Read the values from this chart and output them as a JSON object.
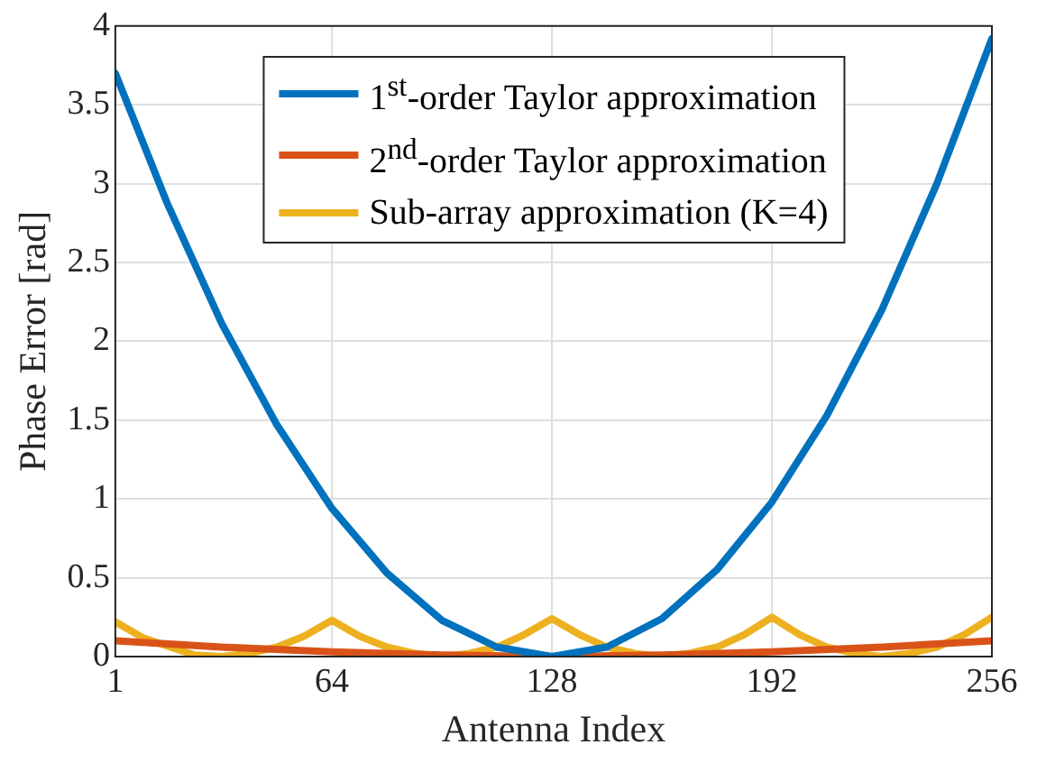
{
  "chart_data": {
    "type": "line",
    "xlabel": "Antenna Index",
    "ylabel": "Phase Error [rad]",
    "xlim": [
      1,
      256
    ],
    "xticks": [
      1,
      64,
      128,
      192,
      256
    ],
    "ylim": [
      0,
      4
    ],
    "yticks": [
      0,
      0.5,
      1,
      1.5,
      2,
      2.5,
      3,
      3.5,
      4
    ],
    "grid": true,
    "legend": "top",
    "marker": "none",
    "line_style": "solid",
    "series": [
      {
        "name": "1$^{st}$-order Taylor approximation",
        "color": "#0072bd",
        "x": [
          1,
          16,
          32,
          48,
          64,
          80,
          96,
          112,
          128,
          144,
          160,
          176,
          192,
          208,
          224,
          240,
          256
        ],
        "values": [
          3.7,
          2.88,
          2.11,
          1.47,
          0.94,
          0.53,
          0.23,
          0.06,
          0.0,
          0.06,
          0.24,
          0.55,
          0.98,
          1.53,
          2.2,
          3.0,
          3.92
        ]
      },
      {
        "name": "2$^{nd}$-order Taylor approximation",
        "color": "#d95319",
        "x": [
          1,
          32,
          64,
          96,
          128,
          160,
          192,
          224,
          256
        ],
        "values": [
          0.1,
          0.06,
          0.03,
          0.01,
          0.0,
          0.01,
          0.03,
          0.06,
          0.1
        ]
      },
      {
        "name": "Sub-array approximation (K=4)",
        "color": "#edb120",
        "x": [
          1,
          9,
          17,
          24,
          32,
          40,
          48,
          56,
          64,
          72,
          80,
          88,
          96,
          104,
          112,
          120,
          128,
          136,
          144,
          152,
          160,
          168,
          176,
          184,
          192,
          200,
          208,
          216,
          224,
          232,
          240,
          248,
          256
        ],
        "values": [
          0.22,
          0.12,
          0.06,
          0.01,
          0.0,
          0.02,
          0.06,
          0.13,
          0.23,
          0.13,
          0.06,
          0.02,
          0.0,
          0.02,
          0.06,
          0.14,
          0.24,
          0.14,
          0.06,
          0.02,
          0.0,
          0.02,
          0.06,
          0.14,
          0.25,
          0.14,
          0.06,
          0.02,
          0.0,
          0.02,
          0.06,
          0.14,
          0.25
        ]
      }
    ]
  }
}
